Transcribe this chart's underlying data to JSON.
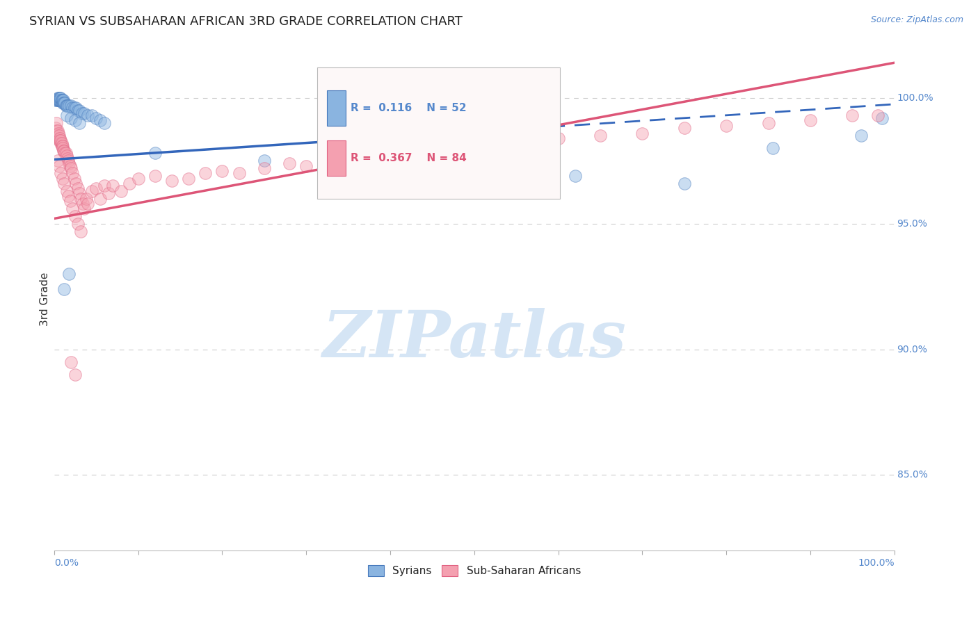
{
  "title": "SYRIAN VS SUBSAHARAN AFRICAN 3RD GRADE CORRELATION CHART",
  "source": "Source: ZipAtlas.com",
  "ylabel": "3rd Grade",
  "ytick_labels": [
    "85.0%",
    "90.0%",
    "95.0%",
    "100.0%"
  ],
  "ytick_values": [
    0.85,
    0.9,
    0.95,
    1.0
  ],
  "xmin": 0.0,
  "xmax": 1.0,
  "ymin": 0.82,
  "ymax": 1.02,
  "blue_R": 0.116,
  "blue_N": 52,
  "pink_R": 0.367,
  "pink_N": 84,
  "blue_fill": "#8AB4E0",
  "pink_fill": "#F4A0B0",
  "blue_edge": "#4477BB",
  "pink_edge": "#E06080",
  "blue_line": "#3366BB",
  "pink_line": "#DD5577",
  "grid_color": "#CCCCCC",
  "axis_color": "#5588CC",
  "title_color": "#222222",
  "watermark_color": "#D5E5F5",
  "blue_trend_intercept": 0.9755,
  "blue_trend_slope": 0.022,
  "pink_trend_intercept": 0.952,
  "pink_trend_slope": 0.062,
  "blue_x": [
    0.002,
    0.003,
    0.004,
    0.004,
    0.005,
    0.005,
    0.006,
    0.006,
    0.006,
    0.007,
    0.007,
    0.008,
    0.008,
    0.009,
    0.009,
    0.01,
    0.01,
    0.011,
    0.011,
    0.012,
    0.013,
    0.014,
    0.015,
    0.016,
    0.018,
    0.02,
    0.022,
    0.024,
    0.026,
    0.028,
    0.03,
    0.033,
    0.036,
    0.04,
    0.045,
    0.05,
    0.055,
    0.06,
    0.015,
    0.02,
    0.025,
    0.03,
    0.12,
    0.25,
    0.42,
    0.62,
    0.75,
    0.855,
    0.96,
    0.985,
    0.012,
    0.018
  ],
  "blue_y": [
    0.999,
    0.999,
    0.999,
    1.0,
    0.999,
    1.0,
    0.999,
    1.0,
    0.999,
    0.999,
    1.0,
    0.999,
    1.0,
    0.999,
    0.999,
    0.998,
    0.999,
    0.999,
    0.998,
    0.998,
    0.998,
    0.997,
    0.997,
    0.997,
    0.997,
    0.997,
    0.996,
    0.996,
    0.996,
    0.995,
    0.995,
    0.994,
    0.994,
    0.993,
    0.993,
    0.992,
    0.991,
    0.99,
    0.993,
    0.992,
    0.991,
    0.99,
    0.978,
    0.975,
    0.972,
    0.969,
    0.966,
    0.98,
    0.985,
    0.992,
    0.924,
    0.93
  ],
  "pink_x": [
    0.002,
    0.003,
    0.003,
    0.004,
    0.004,
    0.005,
    0.005,
    0.006,
    0.006,
    0.007,
    0.007,
    0.008,
    0.008,
    0.009,
    0.009,
    0.01,
    0.01,
    0.011,
    0.012,
    0.013,
    0.014,
    0.015,
    0.016,
    0.017,
    0.018,
    0.019,
    0.02,
    0.022,
    0.024,
    0.026,
    0.028,
    0.03,
    0.032,
    0.034,
    0.036,
    0.038,
    0.04,
    0.045,
    0.05,
    0.055,
    0.06,
    0.065,
    0.07,
    0.08,
    0.09,
    0.1,
    0.12,
    0.14,
    0.16,
    0.18,
    0.2,
    0.22,
    0.25,
    0.28,
    0.3,
    0.33,
    0.38,
    0.42,
    0.46,
    0.5,
    0.55,
    0.6,
    0.65,
    0.7,
    0.75,
    0.8,
    0.85,
    0.9,
    0.95,
    0.98,
    0.004,
    0.006,
    0.008,
    0.01,
    0.012,
    0.015,
    0.017,
    0.019,
    0.022,
    0.025,
    0.028,
    0.032,
    0.02,
    0.025
  ],
  "pink_y": [
    0.988,
    0.987,
    0.99,
    0.985,
    0.987,
    0.984,
    0.986,
    0.983,
    0.985,
    0.983,
    0.984,
    0.982,
    0.983,
    0.981,
    0.982,
    0.981,
    0.98,
    0.979,
    0.979,
    0.978,
    0.978,
    0.977,
    0.976,
    0.975,
    0.974,
    0.973,
    0.972,
    0.97,
    0.968,
    0.966,
    0.964,
    0.962,
    0.96,
    0.958,
    0.956,
    0.96,
    0.958,
    0.963,
    0.964,
    0.96,
    0.965,
    0.962,
    0.965,
    0.963,
    0.966,
    0.968,
    0.969,
    0.967,
    0.968,
    0.97,
    0.971,
    0.97,
    0.972,
    0.974,
    0.973,
    0.975,
    0.978,
    0.978,
    0.98,
    0.982,
    0.983,
    0.984,
    0.985,
    0.986,
    0.988,
    0.989,
    0.99,
    0.991,
    0.993,
    0.993,
    0.975,
    0.973,
    0.97,
    0.968,
    0.966,
    0.963,
    0.961,
    0.959,
    0.956,
    0.953,
    0.95,
    0.947,
    0.895,
    0.89
  ]
}
